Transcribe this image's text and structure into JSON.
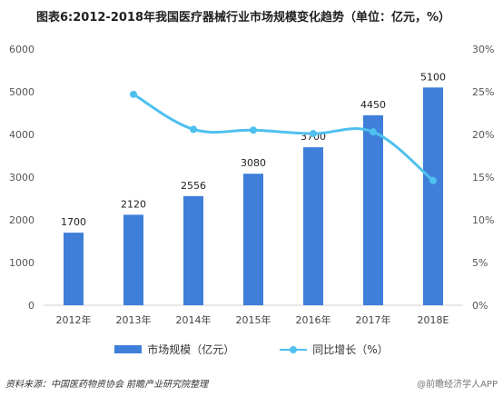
{
  "chart_data": {
    "type": "bar+line",
    "title": "图表6:2012-2018年我国医疗器械行业市场规模变化趋势（单位：亿元，%）",
    "categories": [
      "2012年",
      "2013年",
      "2014年",
      "2015年",
      "2016年",
      "2017年",
      "2018E"
    ],
    "series": [
      {
        "name": "市场规模（亿元）",
        "type": "bar",
        "axis": "left",
        "values": [
          1700,
          2120,
          2556,
          3080,
          3700,
          4450,
          5100
        ],
        "data_labels": [
          "1700",
          "2120",
          "2556",
          "3080",
          "3700",
          "4450",
          "5100"
        ]
      },
      {
        "name": "同比增长（%）",
        "type": "line",
        "axis": "right",
        "values": [
          null,
          24.7,
          20.6,
          20.5,
          20.1,
          20.3,
          14.6
        ]
      }
    ],
    "left_axis": {
      "min": 0,
      "max": 6000,
      "ticks": [
        "0",
        "1000",
        "2000",
        "3000",
        "4000",
        "5000",
        "6000"
      ]
    },
    "right_axis": {
      "min": 0,
      "max": 30,
      "ticks": [
        "0%",
        "5%",
        "10%",
        "15%",
        "20%",
        "25%",
        "30%"
      ]
    },
    "grid": false,
    "legend_position": "bottom",
    "colors": {
      "bar": "#3f7fd9",
      "line": "#4fc0ee"
    }
  },
  "footer": {
    "source": "资料来源：中国医药物资协会  前瞻产业研究院整理",
    "watermark": "@前瞻经济学人APP"
  }
}
